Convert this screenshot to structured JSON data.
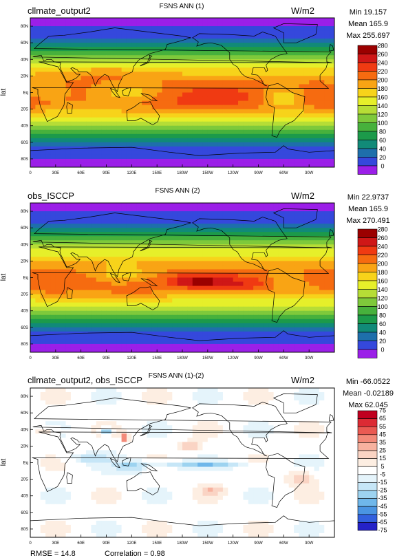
{
  "chart_data": [
    {
      "type": "heatmap",
      "case_name": "cllmate_output2",
      "title": "FSNS ANN (1)",
      "units": "W/m2",
      "ylabel": "lat",
      "stats": {
        "min": "Min 19.157",
        "mean": "Mean 165.9",
        "max": "Max 255.697"
      },
      "x_ticks": [
        "0",
        "30E",
        "60E",
        "90E",
        "120E",
        "150E",
        "180W",
        "150W",
        "120W",
        "90W",
        "60W",
        "30W"
      ],
      "y_ticks": [
        "80N",
        "60N",
        "40N",
        "20N",
        "Eq",
        "20S",
        "40S",
        "60S",
        "80S"
      ],
      "colorbar_levels": [
        "280",
        "260",
        "240",
        "220",
        "200",
        "180",
        "160",
        "140",
        "120",
        "100",
        "80",
        "60",
        "40",
        "20",
        "0"
      ],
      "colorbar_colors": [
        "#9b0000",
        "#cf1717",
        "#f03a12",
        "#f66b10",
        "#f9a414",
        "#f7d31a",
        "#e6ef2a",
        "#b6dd36",
        "#7ec93b",
        "#47b13c",
        "#1c9a4a",
        "#118a78",
        "#1e6fab",
        "#3548dc",
        "#9b1fe8"
      ],
      "field_scale": [
        0,
        280
      ]
    },
    {
      "type": "heatmap",
      "case_name": "obs_ISCCP",
      "title": "FSNS ANN (2)",
      "units": "W/m2",
      "ylabel": "lat",
      "stats": {
        "min": "Min 22.9737",
        "mean": "Mean 165.9",
        "max": "Max 270.491"
      },
      "x_ticks": [
        "0",
        "30E",
        "60E",
        "90E",
        "120E",
        "150E",
        "180W",
        "150W",
        "120W",
        "90W",
        "60W",
        "30W"
      ],
      "y_ticks": [
        "80N",
        "60N",
        "40N",
        "20N",
        "Eq",
        "20S",
        "40S",
        "60S",
        "80S"
      ],
      "colorbar_levels": [
        "280",
        "260",
        "240",
        "220",
        "200",
        "180",
        "160",
        "140",
        "120",
        "100",
        "80",
        "60",
        "40",
        "20",
        "0"
      ],
      "colorbar_colors": [
        "#9b0000",
        "#cf1717",
        "#f03a12",
        "#f66b10",
        "#f9a414",
        "#f7d31a",
        "#e6ef2a",
        "#b6dd36",
        "#7ec93b",
        "#47b13c",
        "#1c9a4a",
        "#118a78",
        "#1e6fab",
        "#3548dc",
        "#9b1fe8"
      ],
      "field_scale": [
        0,
        280
      ]
    },
    {
      "type": "heatmap",
      "case_name": "cllmate_output2, obs_ISCCP",
      "title": "FSNS ANN (1)-(2)",
      "units": "W/m2",
      "ylabel": "lat",
      "stats": {
        "min": "Min -66.0522",
        "mean": "Mean -0.02189",
        "max": "Max 62.045"
      },
      "x_ticks": [
        "0",
        "30E",
        "60E",
        "90E",
        "120E",
        "150E",
        "180W",
        "150W",
        "120W",
        "90W",
        "60W",
        "30W"
      ],
      "y_ticks": [
        "80N",
        "60N",
        "40N",
        "20N",
        "Eq",
        "20S",
        "40S",
        "60S",
        "80S"
      ],
      "colorbar_levels": [
        "75",
        "65",
        "55",
        "45",
        "35",
        "25",
        "15",
        "5",
        "-5",
        "-15",
        "-25",
        "-35",
        "-45",
        "-55",
        "-65",
        "-75"
      ],
      "colorbar_colors": [
        "#c0001f",
        "#dc2b34",
        "#ea5a52",
        "#f38a79",
        "#f7b29f",
        "#fad4c4",
        "#fdeee2",
        "#ffffff",
        "#e5f4fb",
        "#c6e6f7",
        "#9dd3f0",
        "#6fb7ea",
        "#4a94e2",
        "#3260de",
        "#2522c8"
      ],
      "field_scale": [
        -75,
        75
      ],
      "footer": {
        "rmse": "RMSE = 14.8",
        "correlation": "Correlation = 0.98"
      }
    }
  ]
}
